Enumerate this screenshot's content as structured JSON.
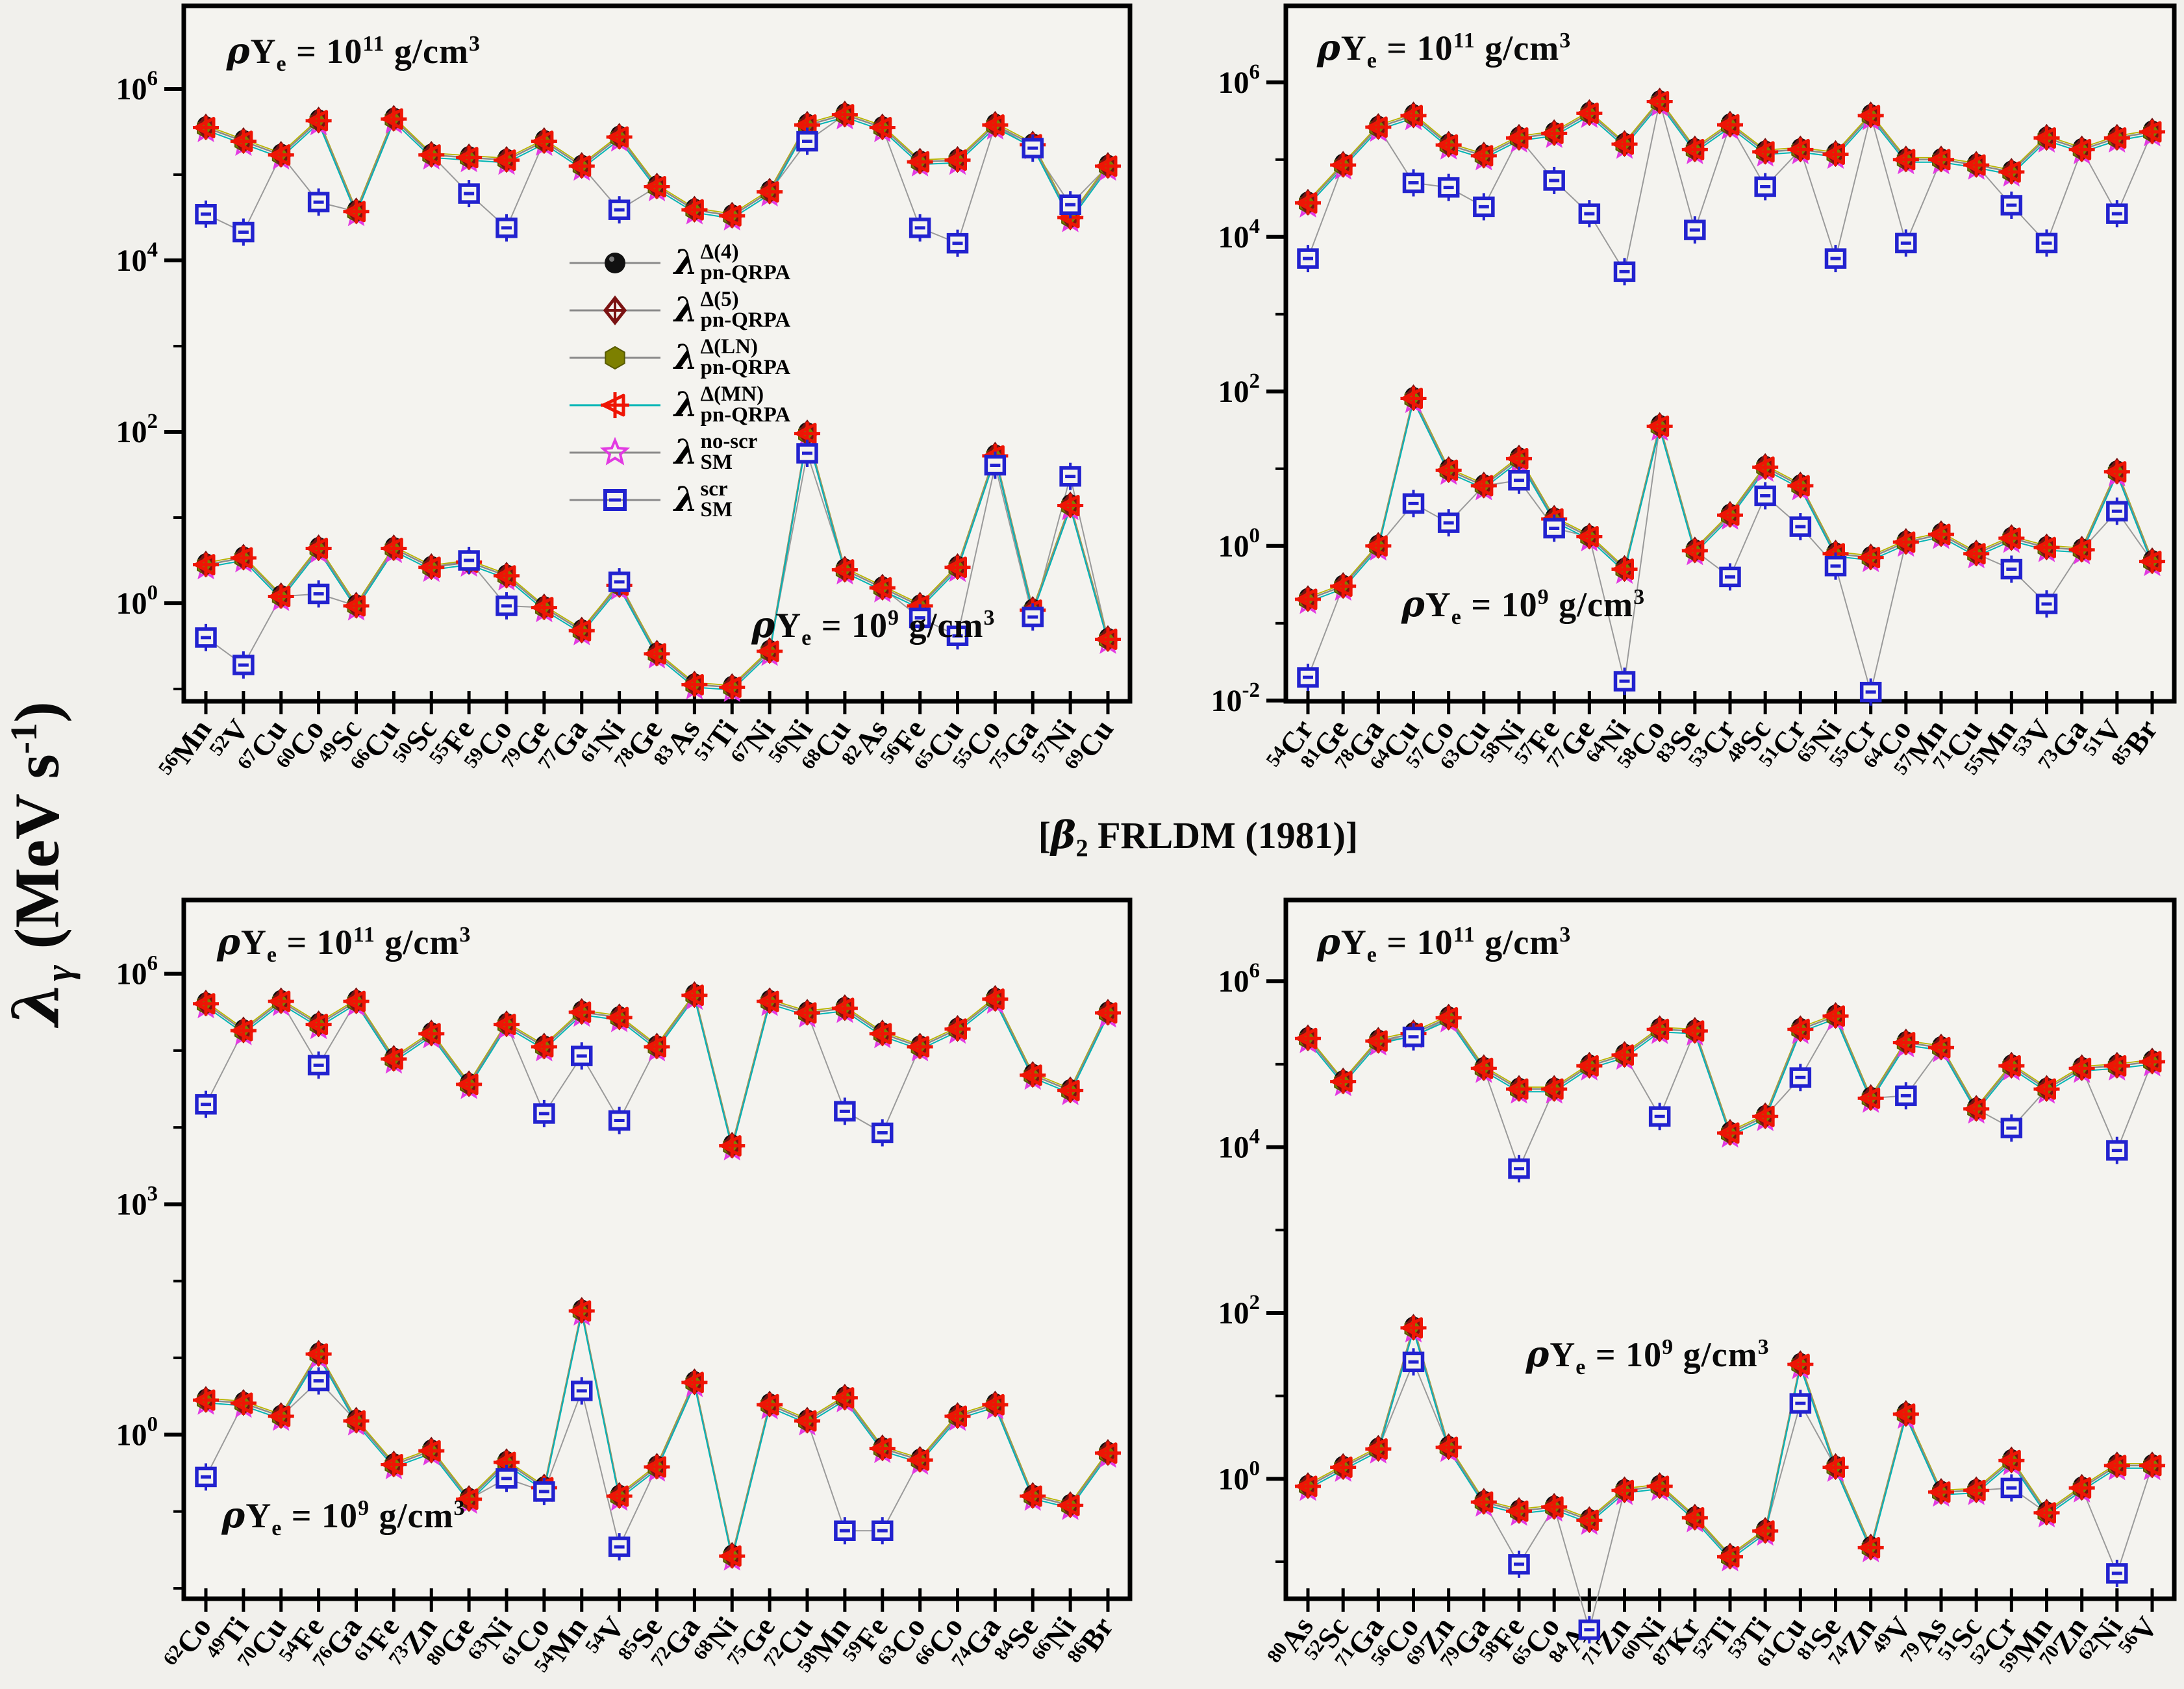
{
  "figure": {
    "background": "#f1f0ec",
    "y_axis_label": {
      "lambda": "λ",
      "sub": "γ",
      "rest": " (MeV s",
      "exp": "-1",
      "close": ")"
    },
    "center_title": {
      "open": "[",
      "beta": "β",
      "sub": "2",
      "rest": " FRLDM (1981)]"
    },
    "annotation_high": {
      "prefix": "ρY",
      "sub": "e",
      "eq": " = 10",
      "exp": "11",
      "unit": " g/cm",
      "unit_exp": "3"
    },
    "annotation_low": {
      "prefix": "ρY",
      "sub": "e",
      "eq": " = 10",
      "exp": "9",
      "unit": " g/cm",
      "unit_exp": "3"
    },
    "legend": [
      {
        "marker": "sphere-black",
        "color": "#111111",
        "lambda": "λ",
        "sup": "Δ(4)",
        "sub": "pn-QRPA"
      },
      {
        "marker": "diamond-darkred",
        "color": "#7a1212",
        "lambda": "λ",
        "sup": "Δ(5)",
        "sub": "pn-QRPA"
      },
      {
        "marker": "hexagon-olive",
        "color": "#7d8000",
        "lambda": "λ",
        "sup": "Δ(LN)",
        "sub": "pn-QRPA"
      },
      {
        "marker": "triangle-cross-red",
        "color": "#ee1505",
        "lambda": "λ",
        "sup": "Δ(MN)",
        "sub": "pn-QRPA"
      },
      {
        "marker": "star-magenta",
        "color": "#e23ae2",
        "lambda": "λ",
        "sup": "no-scr",
        "sub": "SM"
      },
      {
        "marker": "square-blue",
        "color": "#2222cf",
        "lambda": "λ",
        "sup": "scr",
        "sub": "SM"
      }
    ],
    "colors": {
      "cluster_line_gray": "#8a8a8a",
      "cluster_line_cyan": "#00b4b4",
      "cluster_line_olive": "#b8b400",
      "sm_scr_blue": "#2222cf",
      "mn_red": "#ee1505",
      "olive": "#7d8000",
      "dark_red": "#7a1212",
      "magenta": "#e23ae2",
      "black": "#0e0e0e"
    }
  },
  "chart_data": [
    {
      "type": "line",
      "panel": "top-left",
      "title_annotations": [
        "ρYe = 10^11 g/cm3 (upper cluster)",
        "ρYe = 10^9 g/cm3 (lower cluster)"
      ],
      "ylabel": "λγ (MeV s-1)",
      "y_scale": "log10",
      "ylim_log10": [
        -1.14,
        6.97
      ],
      "y_ticks_labeled_exp": [
        6,
        4,
        2,
        0
      ],
      "y_ticks_minor_exp": [
        5,
        3,
        1,
        -1
      ],
      "categories": [
        "56Mn",
        "52V",
        "67Cu",
        "60Co",
        "49Sc",
        "66Cu",
        "50Sc",
        "55Fe",
        "59Co",
        "79Ge",
        "77Ga",
        "61Ni",
        "78Ge",
        "83As",
        "51Ti",
        "67Ni",
        "56Ni",
        "68Cu",
        "82As",
        "56Fe",
        "65Cu",
        "55Co",
        "75Ga",
        "57Ni",
        "69Cu"
      ],
      "series": [
        {
          "id": "qrpa_cluster_1e11",
          "name": "λ pn-QRPA Δ(4),Δ(5),Δ(LN),Δ(MN) and λ SM no-scr (overlapping), ρYe=1e11 g/cm3",
          "log10_values": [
            5.55,
            5.39,
            5.23,
            5.63,
            4.57,
            5.65,
            5.23,
            5.2,
            5.17,
            5.39,
            5.1,
            5.44,
            4.86,
            4.59,
            4.52,
            4.8,
            5.58,
            5.7,
            5.55,
            5.15,
            5.17,
            5.58,
            5.35,
            4.5,
            5.1
          ]
        },
        {
          "id": "sm_scr_1e11",
          "name": "λ SM scr, ρYe=1e11 g/cm3",
          "log10_values": [
            4.54,
            4.33,
            null,
            4.68,
            null,
            null,
            null,
            4.78,
            4.38,
            null,
            null,
            4.59,
            null,
            null,
            null,
            null,
            5.39,
            null,
            null,
            4.38,
            4.2,
            null,
            5.31,
            4.65,
            null
          ]
        },
        {
          "id": "qrpa_cluster_1e9",
          "name": "λ pn-QRPA Δ(4),Δ(5),Δ(LN),Δ(MN) and λ SM no-scr (overlapping), ρYe=1e9 g/cm3",
          "log10_values": [
            0.45,
            0.53,
            0.08,
            0.64,
            -0.03,
            0.64,
            0.42,
            0.48,
            0.32,
            -0.05,
            -0.32,
            0.21,
            -0.59,
            -0.95,
            -0.98,
            -0.56,
            1.98,
            0.39,
            0.18,
            -0.03,
            0.42,
            1.72,
            -0.08,
            1.14,
            -0.42
          ]
        },
        {
          "id": "sm_scr_1e9",
          "name": "λ SM scr, ρYe=1e9 g/cm3",
          "log10_values": [
            -0.4,
            -0.72,
            null,
            0.11,
            null,
            null,
            null,
            0.5,
            -0.03,
            null,
            null,
            0.25,
            null,
            null,
            null,
            null,
            1.75,
            null,
            null,
            -0.17,
            -0.38,
            1.61,
            -0.16,
            1.48,
            null
          ]
        }
      ]
    },
    {
      "type": "line",
      "panel": "top-right",
      "title_annotations": [
        "ρYe = 10^11 g/cm3 (upper cluster)",
        "ρYe = 10^9 g/cm3 (lower cluster)"
      ],
      "ylabel": "λγ (MeV s-1)",
      "y_scale": "log10",
      "ylim_log10": [
        -1.95,
        6.99
      ],
      "y_ticks_labeled_exp": [
        6,
        4,
        2,
        0,
        -2
      ],
      "y_ticks_minor_exp": [
        5,
        3,
        1,
        -1
      ],
      "categories": [
        "54Cr",
        "81Ge",
        "78Ga",
        "64Cu",
        "57Co",
        "63Cu",
        "58Ni",
        "57Fe",
        "77Ge",
        "64Ni",
        "58Co",
        "83Se",
        "53Cr",
        "48Sc",
        "51Cr",
        "65Ni",
        "55Cr",
        "64Co",
        "57Mn",
        "71Cu",
        "55Mn",
        "53V",
        "73Ga",
        "51V",
        "85Br"
      ],
      "series": [
        {
          "id": "qrpa_cluster_1e11",
          "name": "λ pn-QRPA Δ(4),Δ(5),Δ(LN),Δ(MN) and λ SM no-scr (overlapping), ρYe=1e11 g/cm3",
          "log10_values": [
            4.44,
            4.93,
            5.42,
            5.57,
            5.19,
            5.05,
            5.28,
            5.34,
            5.6,
            5.2,
            5.75,
            5.13,
            5.45,
            5.1,
            5.13,
            5.07,
            5.57,
            5.0,
            5.0,
            4.93,
            4.84,
            5.28,
            5.13,
            5.28,
            5.36
          ]
        },
        {
          "id": "sm_scr_1e11",
          "name": "λ SM scr, ρYe=1e11 g/cm3",
          "log10_values": [
            3.72,
            null,
            null,
            4.7,
            4.64,
            4.39,
            null,
            4.73,
            4.3,
            3.55,
            null,
            4.09,
            null,
            4.65,
            null,
            3.72,
            null,
            3.92,
            null,
            null,
            4.41,
            3.92,
            null,
            4.3,
            null
          ]
        },
        {
          "id": "qrpa_cluster_1e9",
          "name": "λ pn-QRPA Δ(4),Δ(5),Δ(LN),Δ(MN) and λ SM no-scr (overlapping), ρYe=1e9 g/cm3",
          "log10_values": [
            -0.69,
            -0.52,
            0.0,
            1.91,
            0.98,
            0.78,
            1.13,
            0.35,
            0.12,
            -0.3,
            1.55,
            -0.06,
            0.4,
            1.02,
            0.78,
            -0.1,
            -0.15,
            0.05,
            0.15,
            -0.1,
            0.1,
            -0.02,
            -0.05,
            0.96,
            -0.2
          ]
        },
        {
          "id": "sm_scr_1e9",
          "name": "λ SM scr, ρYe=1e9 g/cm3",
          "log10_values": [
            -1.7,
            null,
            null,
            0.55,
            0.3,
            null,
            0.85,
            0.23,
            null,
            -1.75,
            null,
            null,
            -0.4,
            0.65,
            0.25,
            -0.26,
            -1.89,
            null,
            null,
            null,
            -0.3,
            -0.75,
            null,
            0.45,
            null
          ]
        }
      ]
    },
    {
      "type": "line",
      "panel": "bottom-left",
      "title_annotations": [
        "ρYe = 10^11 g/cm3 (upper cluster)",
        "ρYe = 10^9 g/cm3 (lower cluster)"
      ],
      "ylabel": "λγ (MeV s-1)",
      "y_scale": "log10",
      "ylim_log10": [
        -2.13,
        6.96
      ],
      "y_ticks_labeled_exp": [
        6,
        3,
        0
      ],
      "y_ticks_minor_exp": [
        5,
        4,
        2,
        1,
        -1,
        -2
      ],
      "categories": [
        "62Co",
        "49Ti",
        "70Cu",
        "54Fe",
        "76Ga",
        "61Fe",
        "73Zn",
        "80Ge",
        "63Ni",
        "61Co",
        "54Mn",
        "54V",
        "85Se",
        "72Ga",
        "68Ni",
        "75Ge",
        "72Cu",
        "58Mn",
        "59Fe",
        "63Co",
        "66Co",
        "74Ga",
        "84Se",
        "66Ni",
        "86Br"
      ],
      "series": [
        {
          "id": "qrpa_cluster_1e11",
          "name": "λ pn-QRPA Δ(4),Δ(5),Δ(LN),Δ(MN) and λ SM no-scr (overlapping), ρYe=1e11 g/cm3",
          "log10_values": [
            5.61,
            5.26,
            5.64,
            5.34,
            5.64,
            4.89,
            5.22,
            4.56,
            5.34,
            5.05,
            5.5,
            5.43,
            5.05,
            5.72,
            3.76,
            5.64,
            5.49,
            5.55,
            5.22,
            5.05,
            5.28,
            5.67,
            4.68,
            4.48,
            5.49
          ]
        },
        {
          "id": "sm_scr_1e11",
          "name": "λ SM scr, ρYe=1e11 g/cm3",
          "log10_values": [
            4.3,
            null,
            null,
            4.81,
            null,
            null,
            null,
            null,
            null,
            4.18,
            4.93,
            4.09,
            null,
            null,
            null,
            null,
            null,
            4.21,
            3.93,
            null,
            null,
            null,
            null,
            null,
            null
          ]
        },
        {
          "id": "qrpa_cluster_1e9",
          "name": "λ pn-QRPA Δ(4),Δ(5),Δ(LN),Δ(MN) and λ SM no-scr (overlapping), ρYe=1e9 g/cm3",
          "log10_values": [
            0.45,
            0.41,
            0.24,
            1.05,
            0.18,
            -0.39,
            -0.21,
            -0.84,
            -0.36,
            -0.69,
            1.61,
            -0.8,
            -0.42,
            0.68,
            -1.58,
            0.39,
            0.18,
            0.48,
            -0.18,
            -0.33,
            0.24,
            0.39,
            -0.8,
            -0.92,
            -0.24
          ]
        },
        {
          "id": "sm_scr_1e9",
          "name": "λ SM scr, ρYe=1e9 g/cm3",
          "log10_values": [
            -0.55,
            null,
            null,
            0.7,
            null,
            null,
            null,
            null,
            -0.57,
            -0.74,
            0.57,
            -1.46,
            null,
            null,
            null,
            null,
            null,
            -1.25,
            -1.25,
            null,
            null,
            null,
            null,
            null,
            null
          ]
        }
      ]
    },
    {
      "type": "line",
      "panel": "bottom-right",
      "title_annotations": [
        "ρYe = 10^11 g/cm3 (upper cluster)",
        "ρYe = 10^9 g/cm3 (lower cluster)"
      ],
      "ylabel": "λγ (MeV s-1)",
      "y_scale": "log10",
      "ylim_log10": [
        -1.45,
        6.98
      ],
      "y_ticks_labeled_exp": [
        6,
        4,
        2,
        0
      ],
      "y_ticks_minor_exp": [
        5,
        3,
        1,
        -1
      ],
      "categories": [
        "80As",
        "52Sc",
        "71Ga",
        "56Co",
        "69Zn",
        "79Ga",
        "58Fe",
        "65Co",
        "84As",
        "71Zn",
        "60Ni",
        "87Kr",
        "52Ti",
        "53Ti",
        "61Cu",
        "81Se",
        "74Zn",
        "49V",
        "79As",
        "51Sc",
        "52Cr",
        "59Mn",
        "70Zn",
        "62Ni",
        "56V"
      ],
      "series": [
        {
          "id": "qrpa_cluster_1e11",
          "name": "λ pn-QRPA Δ(4),Δ(5),Δ(LN),Δ(MN) and λ SM no-scr (overlapping), ρYe=1e11 g/cm3",
          "log10_values": [
            5.31,
            4.79,
            5.28,
            5.37,
            5.56,
            4.95,
            4.7,
            4.7,
            4.98,
            5.11,
            5.42,
            5.4,
            4.17,
            4.37,
            5.42,
            5.58,
            4.59,
            5.26,
            5.2,
            4.46,
            4.98,
            4.7,
            4.95,
            4.98,
            5.03
          ]
        },
        {
          "id": "sm_scr_1e11",
          "name": "λ SM scr, ρYe=1e11 g/cm3",
          "log10_values": [
            null,
            null,
            null,
            5.33,
            null,
            null,
            3.74,
            null,
            null,
            null,
            4.37,
            null,
            null,
            null,
            4.84,
            null,
            null,
            4.62,
            null,
            null,
            4.23,
            null,
            null,
            3.96,
            null
          ]
        },
        {
          "id": "qrpa_cluster_1e9",
          "name": "λ pn-QRPA Δ(4),Δ(5),Δ(LN),Δ(MN) and λ SM no-scr (overlapping), ρYe=1e9 g/cm3",
          "log10_values": [
            -0.09,
            0.14,
            0.36,
            1.82,
            0.38,
            -0.28,
            -0.39,
            -0.34,
            -0.5,
            -0.14,
            -0.09,
            -0.47,
            -0.94,
            -0.63,
            1.38,
            0.14,
            -0.83,
            0.78,
            -0.16,
            -0.14,
            0.22,
            -0.41,
            -0.11,
            0.16,
            0.16
          ]
        },
        {
          "id": "sm_scr_1e9",
          "name": "λ SM scr, ρYe=1e9 g/cm3",
          "log10_values": [
            null,
            null,
            null,
            1.41,
            null,
            null,
            -1.03,
            null,
            -1.82,
            null,
            null,
            null,
            null,
            null,
            0.91,
            null,
            null,
            null,
            null,
            null,
            -0.11,
            null,
            null,
            -1.14,
            null
          ]
        }
      ]
    }
  ]
}
